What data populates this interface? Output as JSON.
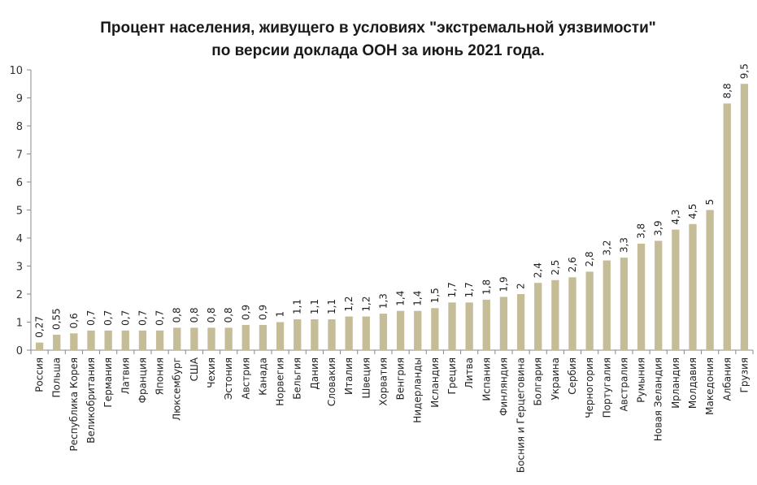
{
  "chart_data": {
    "type": "bar",
    "title_line1": "Процент населения, живущего в условиях \"экстремальной уязвимости\"",
    "title_line2": "по версии доклада ООН за июнь 2021 года.",
    "xlabel": "",
    "ylabel": "",
    "ylim": [
      0,
      10
    ],
    "yticks": [
      "0",
      "1",
      "2",
      "3",
      "4",
      "5",
      "6",
      "7",
      "8",
      "9",
      "10"
    ],
    "grid": false,
    "bar_color": "#c4bd97",
    "categories": [
      "Россия",
      "Польша",
      "Республика Корея",
      "Великобритания",
      "Германия",
      "Латвия",
      "Франция",
      "Япония",
      "Люксембург",
      "США",
      "Чехия",
      "Эстония",
      "Австрия",
      "Канада",
      "Норвегия",
      "Бельгия",
      "Дания",
      "Словакия",
      "Италия",
      "Швеция",
      "Хорватия",
      "Венгрия",
      "Нидерланды",
      "Исландия",
      "Греция",
      "Литва",
      "Испания",
      "Финляндия",
      "Босния и Герцеговина",
      "Болгария",
      "Украина",
      "Сербия",
      "Черногория",
      "Португалия",
      "Австралия",
      "Румыния",
      "Новая Зеландия",
      "Ирландия",
      "Молдавия",
      "Македония",
      "Албания",
      "Грузия"
    ],
    "values": [
      0.27,
      0.55,
      0.6,
      0.7,
      0.7,
      0.7,
      0.7,
      0.7,
      0.8,
      0.8,
      0.8,
      0.8,
      0.9,
      0.9,
      1,
      1.1,
      1.1,
      1.1,
      1.2,
      1.2,
      1.3,
      1.4,
      1.4,
      1.5,
      1.7,
      1.7,
      1.8,
      1.9,
      2,
      2.4,
      2.5,
      2.6,
      2.8,
      3.2,
      3.3,
      3.8,
      3.9,
      4.3,
      4.5,
      5,
      8.8,
      9.5
    ],
    "value_labels": [
      "0,27",
      "0,55",
      "0,6",
      "0,7",
      "0,7",
      "0,7",
      "0,7",
      "0,7",
      "0,8",
      "0,8",
      "0,8",
      "0,8",
      "0,9",
      "0,9",
      "1",
      "1,1",
      "1,1",
      "1,1",
      "1,2",
      "1,2",
      "1,3",
      "1,4",
      "1,4",
      "1,5",
      "1,7",
      "1,7",
      "1,8",
      "1,9",
      "2",
      "2,4",
      "2,5",
      "2,6",
      "2,8",
      "3,2",
      "3,3",
      "3,8",
      "3,9",
      "4,3",
      "4,5",
      "5",
      "8,8",
      "9,5"
    ]
  }
}
